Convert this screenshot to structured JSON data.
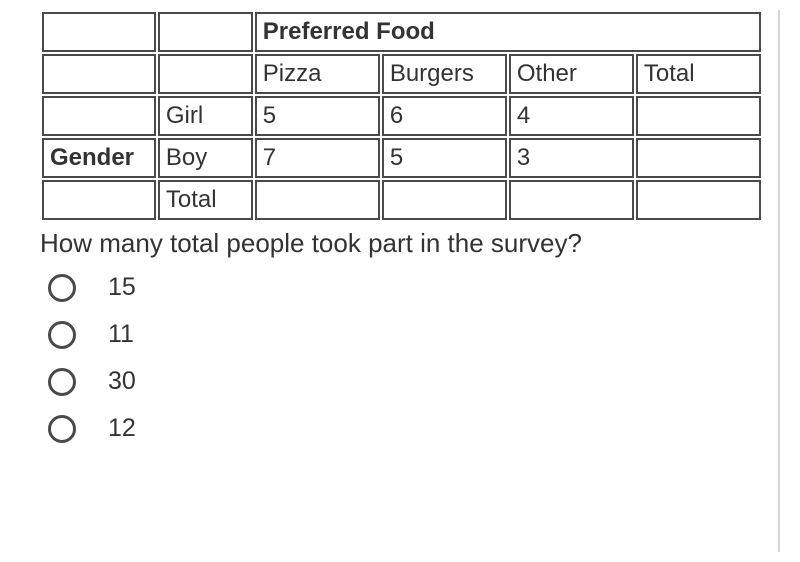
{
  "table": {
    "top_header": "Preferred Food",
    "col_headers": [
      "Pizza",
      "Burgers",
      "Other",
      "Total"
    ],
    "side_header": "Gender",
    "rows": [
      {
        "label": "Girl",
        "cells": [
          "5",
          "6",
          "4",
          ""
        ]
      },
      {
        "label": "Boy",
        "cells": [
          "7",
          "5",
          "3",
          ""
        ]
      },
      {
        "label": "Total",
        "cells": [
          "",
          "",
          "",
          ""
        ]
      }
    ]
  },
  "question": "How many total people took part in the survey?",
  "options": [
    "15",
    "11",
    "30",
    "12"
  ],
  "styling": {
    "border_color": "#4a4a4a",
    "text_color": "#333333",
    "background": "#ffffff",
    "side_border": "#d6d6d6",
    "font_size_cell": 24,
    "font_size_question": 26,
    "radio_size": 28,
    "radio_border_width": 3
  }
}
